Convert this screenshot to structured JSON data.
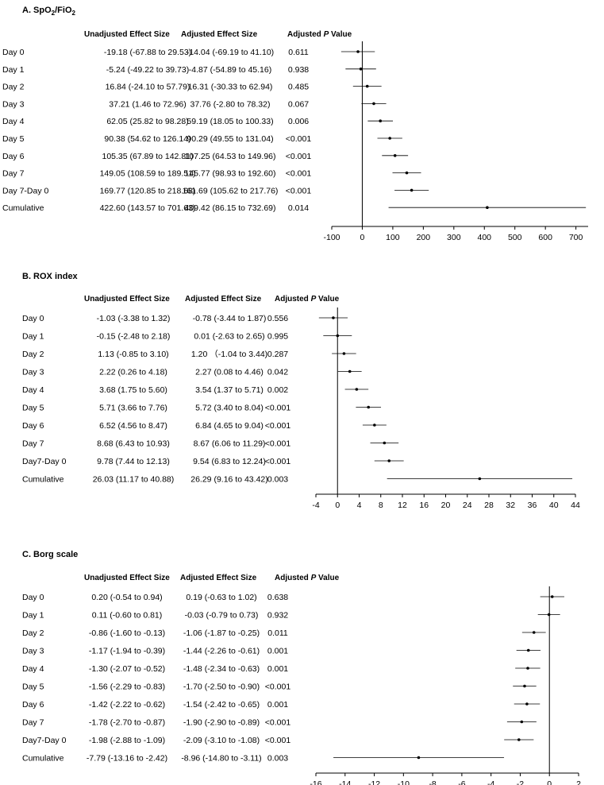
{
  "chart_data": [
    {
      "type": "forest",
      "title_main": "A. SpO",
      "title_sub1": "2",
      "title_mid": "/FiO",
      "title_sub2": "2",
      "header_unadjusted": "Unadjusted  Effect  Size",
      "header_adjusted": "Adjusted  Effect  Size",
      "header_p_prefix": "Adjusted",
      "header_p_italic": "P",
      "header_p_suffix": "Value",
      "xlim": [
        -100,
        740
      ],
      "ticks": [
        -100,
        0,
        100,
        200,
        300,
        400,
        500,
        600,
        700
      ],
      "tick_labels": [
        "-100",
        "0",
        "100",
        "200",
        "300",
        "400",
        "500",
        "600",
        "700"
      ],
      "rows": [
        {
          "label": "Day 0",
          "unadjusted": "-19.18 (-67.88 to 29.53)",
          "adjusted": "-14.04 (-69.19 to 41.10)",
          "p": "0.611",
          "est": -14.04,
          "lo": -69.19,
          "hi": 41.1
        },
        {
          "label": "Day 1",
          "unadjusted": "-5.24 (-49.22 to 39.73)",
          "adjusted": "-4.87 (-54.89 to 45.16)",
          "p": "0.938",
          "est": -4.87,
          "lo": -54.89,
          "hi": 45.16
        },
        {
          "label": "Day 2",
          "unadjusted": "16.84 (-24.10 to 57.79)",
          "adjusted": "16.31 (-30.33 to 62.94)",
          "p": "0.485",
          "est": 16.31,
          "lo": -30.33,
          "hi": 62.94
        },
        {
          "label": "Day 3",
          "unadjusted": "37.21 (1.46 to 72.96)",
          "adjusted": "37.76 (-2.80 to 78.32)",
          "p": "0.067",
          "est": 37.76,
          "lo": -2.8,
          "hi": 78.32
        },
        {
          "label": "Day 4",
          "unadjusted": "62.05 (25.82 to 98.28)",
          "adjusted": "59.19 (18.05 to 100.33)",
          "p": "0.006",
          "est": 59.19,
          "lo": 18.05,
          "hi": 100.33
        },
        {
          "label": "Day 5",
          "unadjusted": "90.38 (54.62 to 126.14)",
          "adjusted": "90.29 (49.55 to 131.04)",
          "p": "<0.001",
          "est": 90.29,
          "lo": 49.55,
          "hi": 131.04
        },
        {
          "label": "Day 6",
          "unadjusted": "105.35 (67.89 to 142.81)",
          "adjusted": "107.25 (64.53 to 149.96)",
          "p": "<0.001",
          "est": 107.25,
          "lo": 64.53,
          "hi": 149.96
        },
        {
          "label": "Day 7",
          "unadjusted": "149.05 (108.59 to 189.51)",
          "adjusted": "145.77 (98.93 to 192.60)",
          "p": "<0.001",
          "est": 145.77,
          "lo": 98.93,
          "hi": 192.6
        },
        {
          "label": "Day 7-Day 0",
          "unadjusted": "169.77 (120.85 to 218.68)",
          "adjusted": "161.69 (105.62 to 217.76)",
          "p": "<0.001",
          "est": 161.69,
          "lo": 105.62,
          "hi": 217.76
        },
        {
          "label": "Cumulative",
          "unadjusted": "422.60 (143.57 to 701.63)",
          "adjusted": "409.42 (86.15 to 732.69)",
          "p": "0.014",
          "est": 409.42,
          "lo": 86.15,
          "hi": 732.69
        }
      ]
    },
    {
      "type": "forest",
      "title_main": "B. ROX index",
      "title_sub1": "",
      "title_mid": "",
      "title_sub2": "",
      "header_unadjusted": "Unadjusted  Effect  Size",
      "header_adjusted": "Adjusted  Effect  Size",
      "header_p_prefix": "Adjusted",
      "header_p_italic": "P",
      "header_p_suffix": "Value",
      "xlim": [
        -4,
        44
      ],
      "ticks": [
        -4,
        0,
        4,
        8,
        12,
        16,
        20,
        24,
        28,
        32,
        36,
        40,
        44
      ],
      "tick_labels": [
        "-4",
        "0",
        "4",
        "8",
        "12",
        "16",
        "20",
        "24",
        "28",
        "32",
        "36",
        "40",
        "44"
      ],
      "rows": [
        {
          "label": "Day 0",
          "unadjusted": "-1.03 (-3.38 to 1.32)",
          "adjusted": "-0.78 (-3.44 to 1.87)",
          "p": "0.556",
          "est": -0.78,
          "lo": -3.44,
          "hi": 1.87
        },
        {
          "label": "Day 1",
          "unadjusted": "-0.15 (-2.48 to 2.18)",
          "adjusted": "0.01 (-2.63 to 2.65)",
          "p": "0.995",
          "est": 0.01,
          "lo": -2.63,
          "hi": 2.65
        },
        {
          "label": "Day 2",
          "unadjusted": "1.13 (-0.85 to 3.10)",
          "adjusted": "1.20 （-1.04 to 3.44)",
          "p": "0.287",
          "est": 1.2,
          "lo": -1.04,
          "hi": 3.44
        },
        {
          "label": "Day 3",
          "unadjusted": "2.22 (0.26 to 4.18)",
          "adjusted": "2.27 (0.08 to 4.46)",
          "p": "0.042",
          "est": 2.27,
          "lo": 0.08,
          "hi": 4.46
        },
        {
          "label": "Day 4",
          "unadjusted": "3.68 (1.75 to 5.60)",
          "adjusted": "3.54 (1.37 to 5.71)",
          "p": "0.002",
          "est": 3.54,
          "lo": 1.37,
          "hi": 5.71
        },
        {
          "label": "Day 5",
          "unadjusted": "5.71 (3.66 to 7.76)",
          "adjusted": "5.72 (3.40 to 8.04)",
          "p": "<0.001",
          "est": 5.72,
          "lo": 3.4,
          "hi": 8.04
        },
        {
          "label": "Day 6",
          "unadjusted": "6.52 (4.56 to 8.47)",
          "adjusted": "6.84 (4.65 to 9.04)",
          "p": "<0.001",
          "est": 6.84,
          "lo": 4.65,
          "hi": 9.04
        },
        {
          "label": "Day 7",
          "unadjusted": "8.68 (6.43 to 10.93)",
          "adjusted": "8.67 (6.06 to 11.29)",
          "p": "<0.001",
          "est": 8.67,
          "lo": 6.06,
          "hi": 11.29
        },
        {
          "label": "Day7-Day 0",
          "unadjusted": "9.78 (7.44 to 12.13)",
          "adjusted": "9.54 (6.83 to 12.24)",
          "p": "<0.001",
          "est": 9.54,
          "lo": 6.83,
          "hi": 12.24
        },
        {
          "label": "Cumulative",
          "unadjusted": "26.03 (11.17 to 40.88)",
          "adjusted": "26.29 (9.16 to 43.42)",
          "p": "0.003",
          "est": 26.29,
          "lo": 9.16,
          "hi": 43.42
        }
      ]
    },
    {
      "type": "forest",
      "title_main": "C. Borg scale",
      "title_sub1": "",
      "title_mid": "",
      "title_sub2": "",
      "header_unadjusted": "Unadjusted  Effect  Size",
      "header_adjusted": "Adjusted  Effect  Size",
      "header_p_prefix": "Adjusted",
      "header_p_italic": "P",
      "header_p_suffix": "Value",
      "xlim": [
        -16,
        2
      ],
      "ticks": [
        -16,
        -14,
        -12,
        -10,
        -8,
        -6,
        -4,
        -2,
        0,
        2
      ],
      "tick_labels": [
        "-16",
        "-14",
        "-12",
        "-10",
        "-8",
        "-6",
        "-4",
        "-2",
        "0",
        "2"
      ],
      "rows": [
        {
          "label": "Day 0",
          "unadjusted": "0.20 (-0.54 to 0.94)",
          "adjusted": "0.19 (-0.63 to 1.02)",
          "p": "0.638",
          "est": 0.19,
          "lo": -0.63,
          "hi": 1.02
        },
        {
          "label": "Day 1",
          "unadjusted": "0.11 (-0.60 to 0.81)",
          "adjusted": "-0.03 (-0.79 to 0.73)",
          "p": "0.932",
          "est": -0.03,
          "lo": -0.79,
          "hi": 0.73
        },
        {
          "label": "Day 2",
          "unadjusted": "-0.86 (-1.60 to -0.13)",
          "adjusted": "-1.06 (-1.87 to -0.25)",
          "p": "0.011",
          "est": -1.06,
          "lo": -1.87,
          "hi": -0.25
        },
        {
          "label": "Day 3",
          "unadjusted": "-1.17 (-1.94 to -0.39)",
          "adjusted": "-1.44 (-2.26 to -0.61)",
          "p": "0.001",
          "est": -1.44,
          "lo": -2.26,
          "hi": -0.61
        },
        {
          "label": "Day 4",
          "unadjusted": "-1.30 (-2.07 to -0.52)",
          "adjusted": "-1.48 (-2.34 to -0.63)",
          "p": "0.001",
          "est": -1.48,
          "lo": -2.34,
          "hi": -0.63
        },
        {
          "label": "Day 5",
          "unadjusted": "-1.56 (-2.29 to -0.83)",
          "adjusted": "-1.70 (-2.50 to -0.90)",
          "p": "<0.001",
          "est": -1.7,
          "lo": -2.5,
          "hi": -0.9
        },
        {
          "label": "Day 6",
          "unadjusted": "-1.42 (-2.22 to -0.62)",
          "adjusted": "-1.54 (-2.42 to -0.65)",
          "p": "0.001",
          "est": -1.54,
          "lo": -2.42,
          "hi": -0.65
        },
        {
          "label": "Day 7",
          "unadjusted": "-1.78 (-2.70 to -0.87)",
          "adjusted": "-1.90 (-2.90 to -0.89)",
          "p": "<0.001",
          "est": -1.9,
          "lo": -2.9,
          "hi": -0.89
        },
        {
          "label": "Day7-Day 0",
          "unadjusted": "-1.98 (-2.88 to -1.09)",
          "adjusted": "-2.09 (-3.10 to -1.08)",
          "p": "<0.001",
          "est": -2.09,
          "lo": -3.1,
          "hi": -1.08
        },
        {
          "label": "Cumulative",
          "unadjusted": "-7.79 (-13.16 to -2.42)",
          "adjusted": "-8.96 (-14.80 to -3.11)",
          "p": "0.003",
          "est": -8.96,
          "lo": -14.8,
          "hi": -3.11
        }
      ]
    }
  ]
}
